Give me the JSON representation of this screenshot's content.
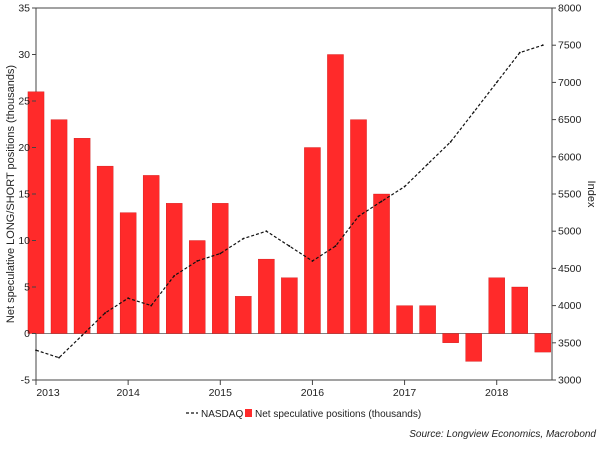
{
  "chart_data": {
    "type": "bar+line",
    "title": "",
    "left_axis": {
      "label": "Net speculative LONG/SHORT positions (thousands)",
      "range": [
        -5,
        35
      ],
      "ticks": [
        -5,
        0,
        5,
        10,
        15,
        20,
        25,
        30,
        35
      ]
    },
    "right_axis": {
      "label": "Index",
      "range": [
        3000,
        8000
      ],
      "ticks": [
        3000,
        3500,
        4000,
        4500,
        5000,
        5500,
        6000,
        6500,
        7000,
        7500,
        8000
      ]
    },
    "x_axis": {
      "range": [
        "2013-01",
        "2018-06"
      ],
      "tick_labels": [
        "2013",
        "2014",
        "2015",
        "2016",
        "2017",
        "2018"
      ],
      "tick_positions": [
        2013.0,
        2014.0,
        2015.0,
        2016.0,
        2017.0,
        2018.0
      ]
    },
    "legend": {
      "placement": "bottom-center",
      "entries": [
        "NASDAQ",
        "Net speculative positions (thousands)"
      ]
    },
    "source": "Source: Longview Economics, Macrobond",
    "colors": {
      "bars": "#ff2a2a",
      "bar_edge": "#c00000",
      "line": "#111111"
    },
    "series": [
      {
        "name": "Net speculative positions (thousands)",
        "axis": "left",
        "style": "bar",
        "x": [
          2013.0,
          2013.25,
          2013.5,
          2013.75,
          2014.0,
          2014.25,
          2014.5,
          2014.75,
          2015.0,
          2015.25,
          2015.5,
          2015.75,
          2016.0,
          2016.25,
          2016.5,
          2016.75,
          2017.0,
          2017.25,
          2017.5,
          2017.75,
          2018.0,
          2018.25,
          2018.5
        ],
        "values": [
          26,
          23,
          21,
          18,
          13,
          17,
          14,
          10,
          14,
          4,
          8,
          6,
          20,
          30,
          23,
          15,
          3,
          3,
          -1,
          -3,
          6,
          5,
          -2
        ]
      },
      {
        "name": "NASDAQ",
        "axis": "right",
        "style": "dashed-line",
        "x": [
          2013.0,
          2013.25,
          2013.5,
          2013.75,
          2014.0,
          2014.25,
          2014.5,
          2014.75,
          2015.0,
          2015.25,
          2015.5,
          2015.75,
          2016.0,
          2016.25,
          2016.5,
          2016.75,
          2017.0,
          2017.25,
          2017.5,
          2017.75,
          2018.0,
          2018.25,
          2018.5
        ],
        "values": [
          3400,
          3300,
          3600,
          3900,
          4100,
          4000,
          4400,
          4600,
          4700,
          4900,
          5000,
          4800,
          4600,
          4800,
          5200,
          5400,
          5600,
          5900,
          6200,
          6600,
          7000,
          7400,
          7500
        ]
      }
    ]
  }
}
